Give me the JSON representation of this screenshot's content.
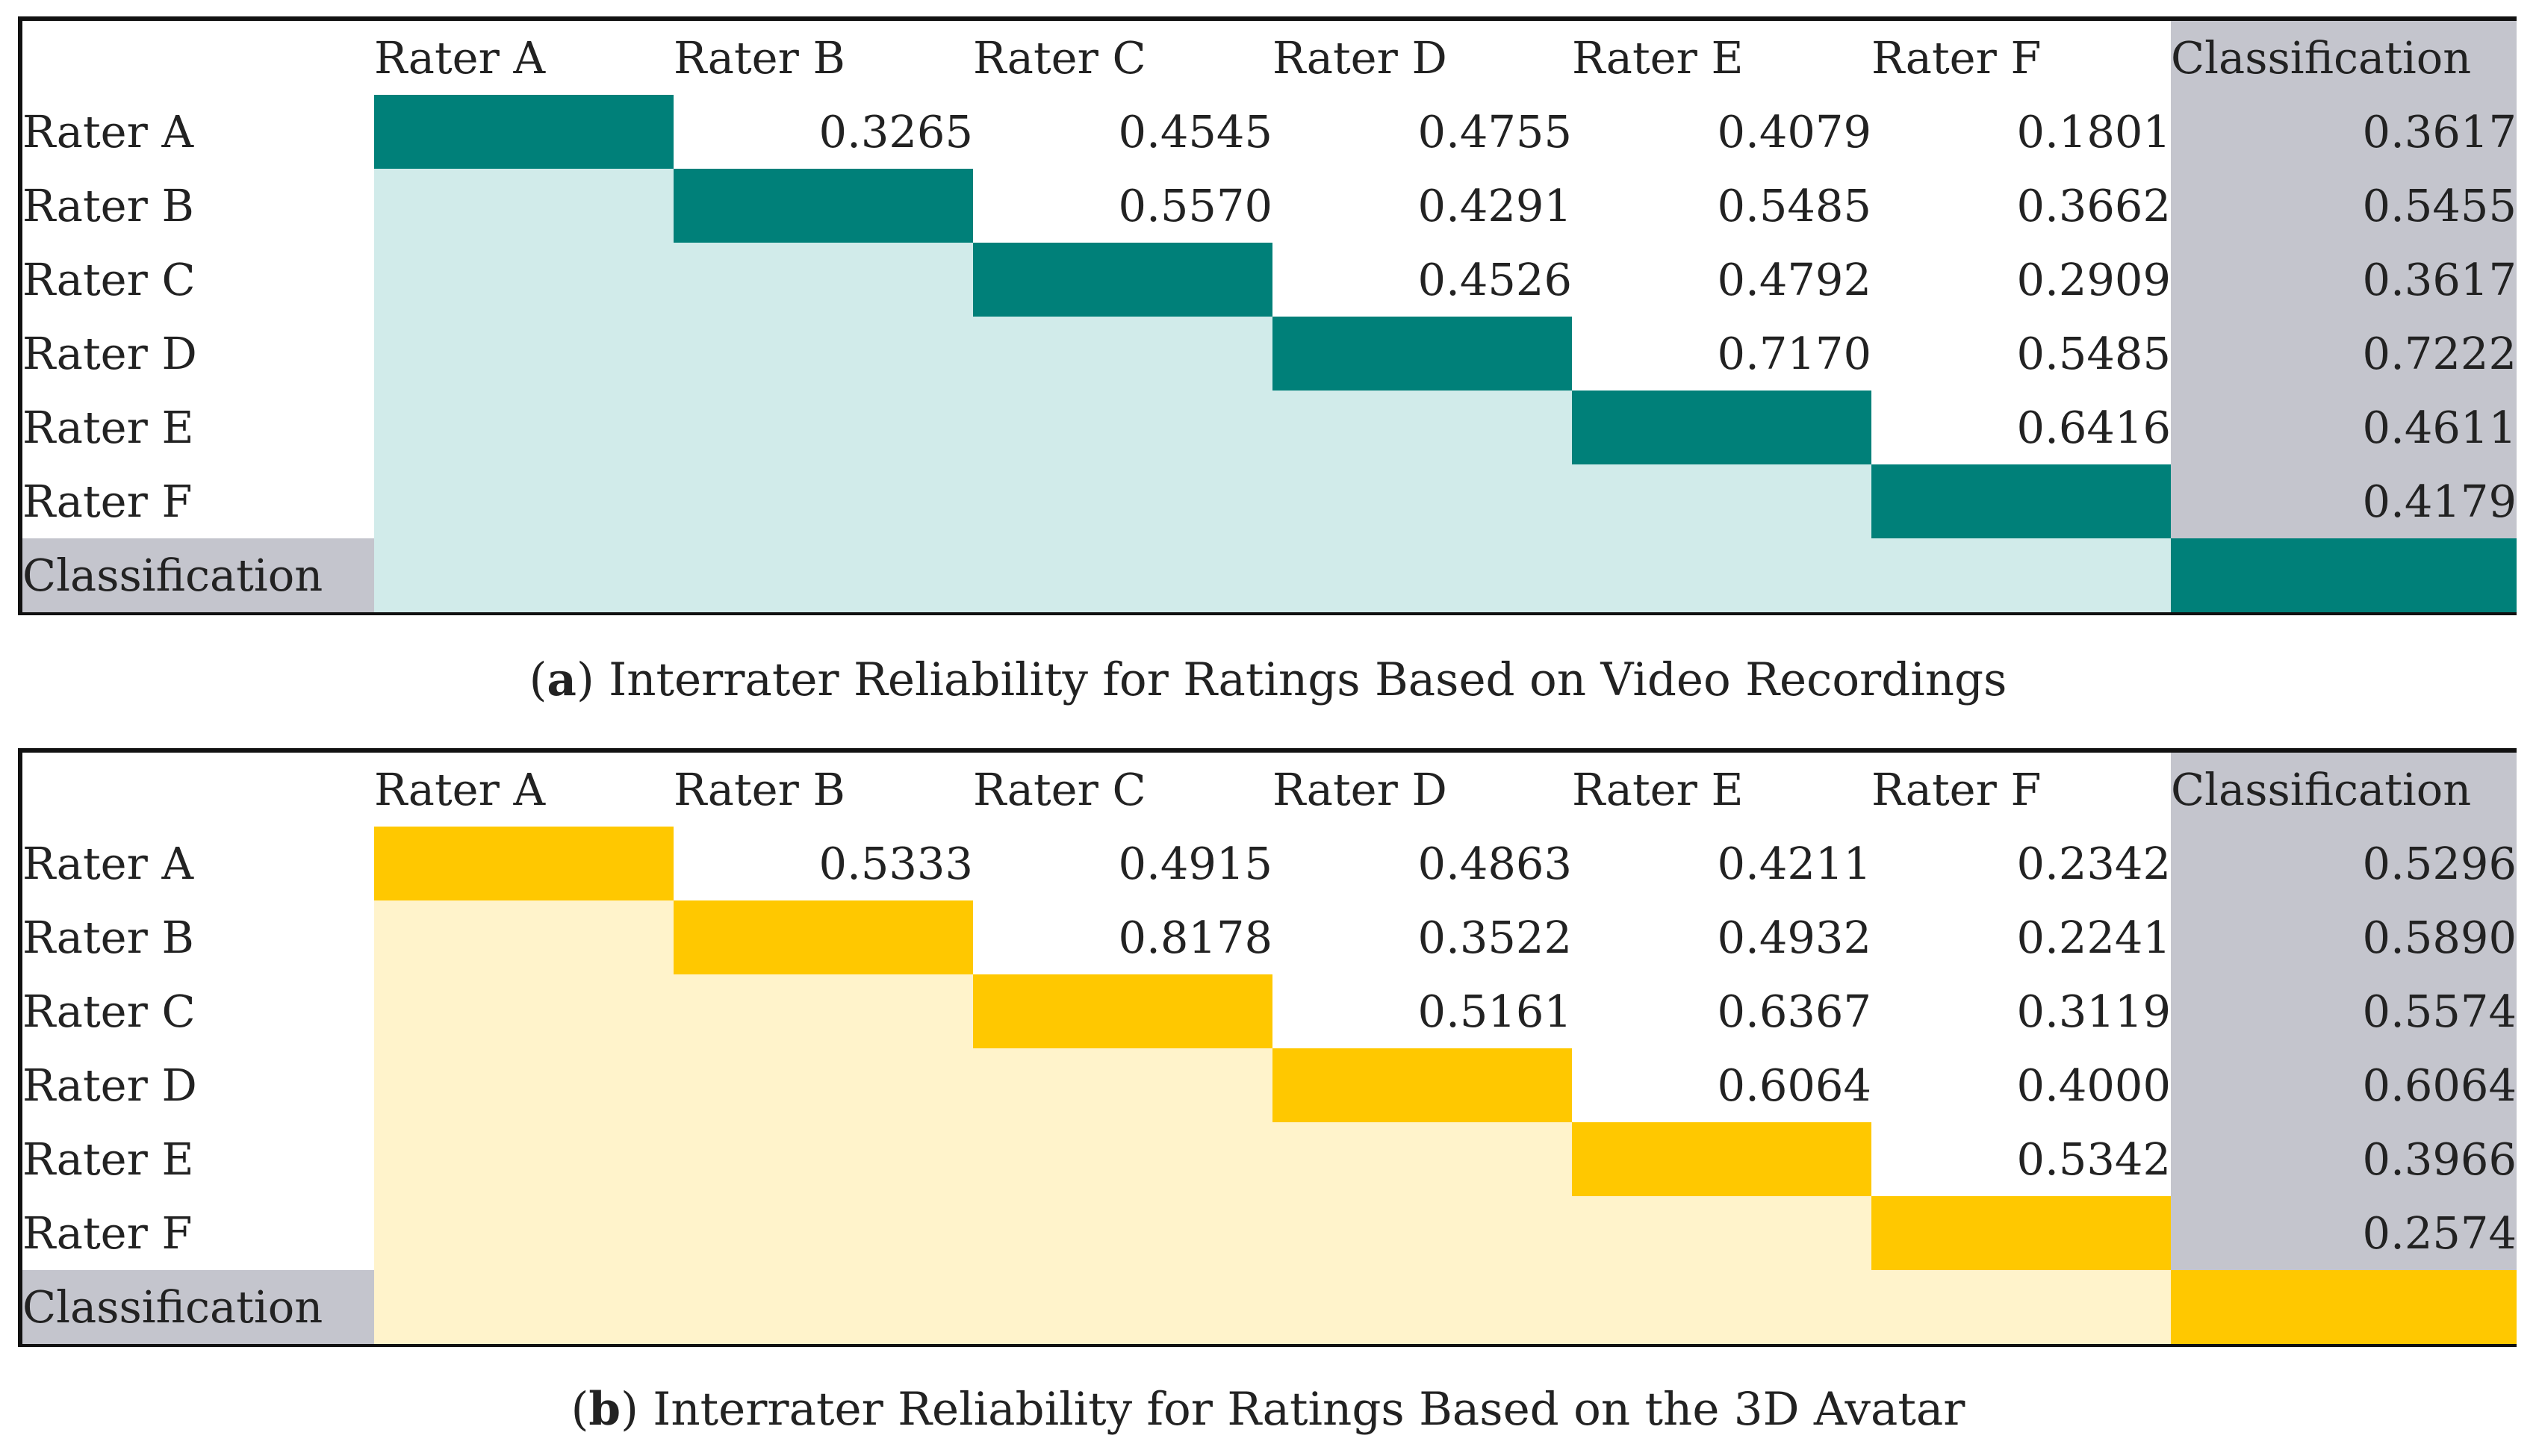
{
  "chart_data": [
    {
      "type": "table",
      "panel_label": "a",
      "caption": "Interrater Reliability for Ratings Based on Video Recordings",
      "columns": [
        "Rater A",
        "Rater B",
        "Rater C",
        "Rater D",
        "Rater E",
        "Rater F",
        "Classification"
      ],
      "rows": [
        "Rater A",
        "Rater B",
        "Rater C",
        "Rater D",
        "Rater E",
        "Rater F",
        "Classification"
      ],
      "values": [
        [
          "",
          "0.3265",
          "0.4545",
          "0.4755",
          "0.4079",
          "0.1801",
          "0.3617"
        ],
        [
          "",
          "",
          "0.5570",
          "0.4291",
          "0.5485",
          "0.3662",
          "0.5455"
        ],
        [
          "",
          "",
          "",
          "0.4526",
          "0.4792",
          "0.2909",
          "0.3617"
        ],
        [
          "",
          "",
          "",
          "",
          "0.7170",
          "0.5485",
          "0.7222"
        ],
        [
          "",
          "",
          "",
          "",
          "",
          "0.6416",
          "0.4611"
        ],
        [
          "",
          "",
          "",
          "",
          "",
          "",
          "0.4179"
        ],
        [
          "",
          "",
          "",
          "",
          "",
          "",
          ""
        ]
      ],
      "colors": {
        "diagonal": "#008079",
        "lower": "#d1ebea",
        "classification": "#c4c5cd"
      }
    },
    {
      "type": "table",
      "panel_label": "b",
      "caption": "Interrater Reliability for Ratings Based on the 3D Avatar",
      "columns": [
        "Rater A",
        "Rater B",
        "Rater C",
        "Rater D",
        "Rater E",
        "Rater F",
        "Classification"
      ],
      "rows": [
        "Rater A",
        "Rater B",
        "Rater C",
        "Rater D",
        "Rater E",
        "Rater F",
        "Classification"
      ],
      "values": [
        [
          "",
          "0.5333",
          "0.4915",
          "0.4863",
          "0.4211",
          "0.2342",
          "0.5296"
        ],
        [
          "",
          "",
          "0.8178",
          "0.3522",
          "0.4932",
          "0.2241",
          "0.5890"
        ],
        [
          "",
          "",
          "",
          "0.5161",
          "0.6367",
          "0.3119",
          "0.5574"
        ],
        [
          "",
          "",
          "",
          "",
          "0.6064",
          "0.4000",
          "0.6064"
        ],
        [
          "",
          "",
          "",
          "",
          "",
          "0.5342",
          "0.3966"
        ],
        [
          "",
          "",
          "",
          "",
          "",
          "",
          "0.2574"
        ],
        [
          "",
          "",
          "",
          "",
          "",
          "",
          ""
        ]
      ],
      "colors": {
        "diagonal": "#ffc800",
        "lower": "#fff3cb",
        "classification": "#c4c5cd"
      }
    }
  ]
}
